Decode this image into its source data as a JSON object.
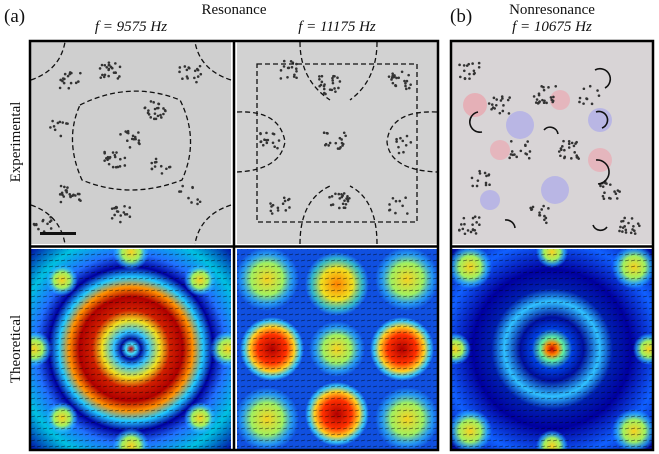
{
  "header": {
    "panel_a": "(a)",
    "panel_a_title": "Resonance",
    "panel_b": "(b)",
    "panel_b_title": "Nonresonance"
  },
  "columns": [
    "f = 9575 Hz",
    "f = 11175 Hz",
    "f = 10675 Hz"
  ],
  "rows": [
    "Experimental",
    "Theoretical"
  ]
}
